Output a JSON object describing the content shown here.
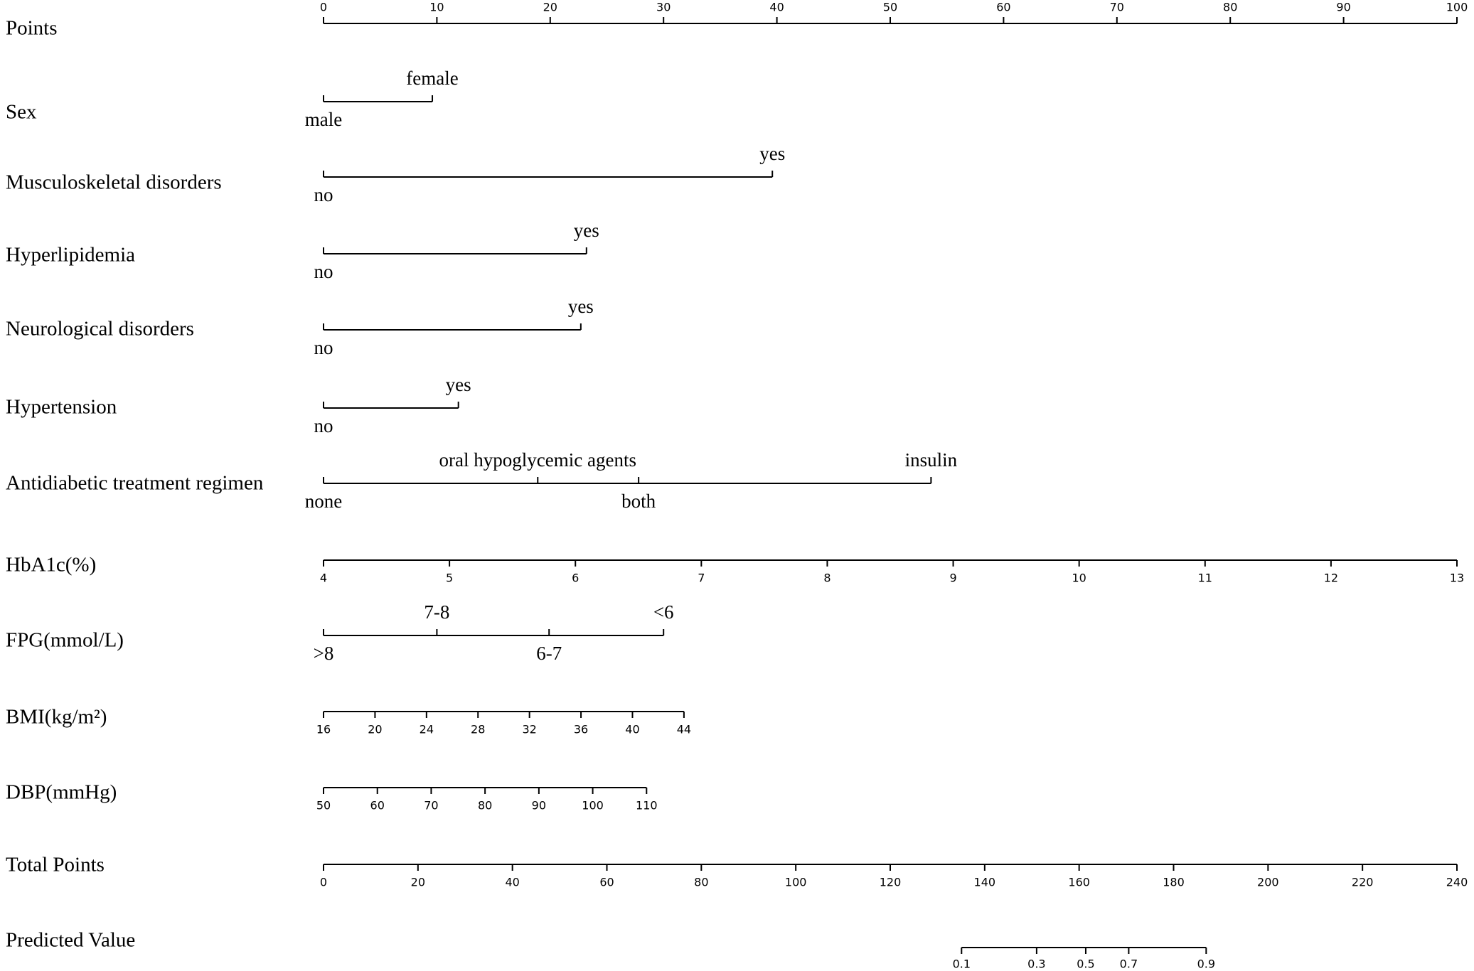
{
  "chart_data": {
    "type": "nomogram",
    "points_lim": [
      0,
      100
    ],
    "rows": [
      {
        "label": "Points",
        "kind": "axis",
        "xlim": [
          0,
          100
        ],
        "points": [
          0,
          100
        ],
        "ticks": [
          0,
          10,
          20,
          30,
          40,
          50,
          60,
          70,
          80,
          90,
          100
        ]
      },
      {
        "label": "Sex",
        "kind": "categorical",
        "levels": [
          "male",
          "female"
        ],
        "points": [
          0,
          9.6
        ]
      },
      {
        "label": "Musculoskeletal disorders",
        "kind": "categorical",
        "levels": [
          "no",
          "yes"
        ],
        "points": [
          0,
          39.6
        ]
      },
      {
        "label": "Hyperlipidemia",
        "kind": "categorical",
        "levels": [
          "no",
          "yes"
        ],
        "points": [
          0,
          23.2
        ]
      },
      {
        "label": "Neurological disorders",
        "kind": "categorical",
        "levels": [
          "no",
          "yes"
        ],
        "points": [
          0,
          22.7
        ]
      },
      {
        "label": "Hypertension",
        "kind": "categorical",
        "levels": [
          "no",
          "yes"
        ],
        "points": [
          0,
          11.9
        ]
      },
      {
        "label": "Antidiabetic treatment regimen",
        "kind": "categorical",
        "levels": [
          "none",
          "oral hypoglycemic agents",
          "both",
          "insulin"
        ],
        "points": [
          0,
          18.9,
          27.8,
          53.6
        ]
      },
      {
        "label": "HbA1c(%)",
        "kind": "axis",
        "xlim": [
          4,
          13
        ],
        "points": [
          0,
          100
        ],
        "ticks": [
          4,
          5,
          6,
          7,
          8,
          9,
          10,
          11,
          12,
          13
        ]
      },
      {
        "label": "FPG(mmol/L)",
        "kind": "categorical",
        "levels": [
          ">8",
          "7-8",
          "6-7",
          "<6"
        ],
        "points": [
          0,
          10.0,
          19.9,
          30.0
        ]
      },
      {
        "label": "BMI(kg/m²)",
        "kind": "axis",
        "xlim": [
          16,
          44
        ],
        "points": [
          0,
          31.8
        ],
        "ticks": [
          16,
          20,
          24,
          28,
          32,
          36,
          40,
          44
        ]
      },
      {
        "label": "DBP(mmHg)",
        "kind": "axis",
        "xlim": [
          50,
          110
        ],
        "points": [
          0,
          28.5
        ],
        "ticks": [
          50,
          60,
          70,
          80,
          90,
          100,
          110
        ]
      },
      {
        "label": "Total Points",
        "kind": "axis",
        "xlim": [
          0,
          240
        ],
        "points": [
          0,
          100
        ],
        "ticks": [
          0,
          20,
          40,
          60,
          80,
          100,
          120,
          140,
          160,
          180,
          200,
          220,
          240
        ]
      },
      {
        "label": "Predicted Value",
        "kind": "mapped",
        "ticks": [
          0.1,
          0.3,
          0.5,
          0.7,
          0.9
        ],
        "total_points": [
          135.1,
          151.0,
          161.4,
          170.5,
          186.9
        ]
      }
    ]
  }
}
